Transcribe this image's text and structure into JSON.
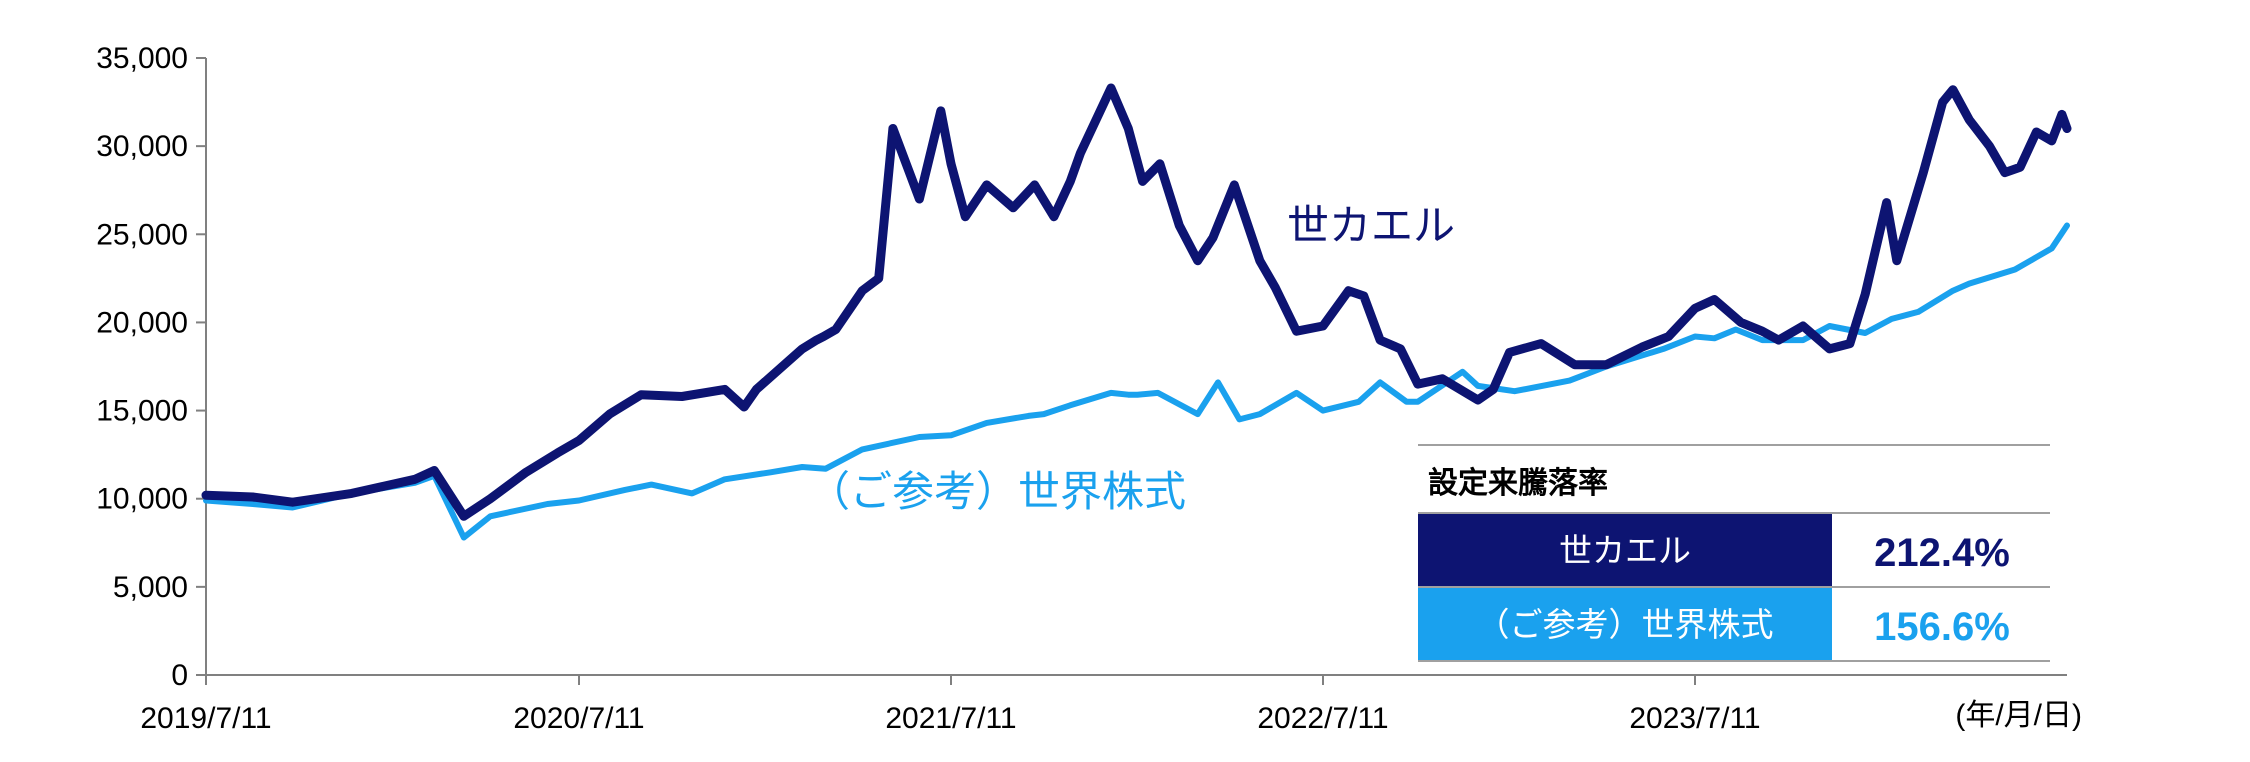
{
  "chart_data": {
    "type": "line",
    "y_ticks": [
      "35,000",
      "30,000",
      "25,000",
      "20,000",
      "15,000",
      "10,000",
      "5,000",
      "0"
    ],
    "ylim": [
      0,
      35000
    ],
    "x_tick_labels": [
      "2019/7/11",
      "2020/7/11",
      "2021/7/11",
      "2022/7/11",
      "2023/7/11"
    ],
    "x_unit_label": "(年/月/日)",
    "x_range": [
      "2019/7/11",
      "2024/7/10"
    ],
    "grid": false,
    "series": [
      {
        "name": "世カエル",
        "color": "#0d1472",
        "x": [
          "2019/7/11",
          "2019/8/26",
          "2019/10/4",
          "2019/12/1",
          "2020/2/1",
          "2020/2/20",
          "2020/3/20",
          "2020/4/15",
          "2020/5/20",
          "2020/6/20",
          "2020/7/11",
          "2020/8/10",
          "2020/9/10",
          "2020/10/20",
          "2020/12/1",
          "2020/12/20",
          "2021/1/1",
          "2021/2/15",
          "2021/3/1",
          "2021/3/8",
          "2021/3/20",
          "2021/4/15",
          "2021/5/1",
          "2021/5/15",
          "2021/6/10",
          "2021/7/1",
          "2021/7/11",
          "2021/7/25",
          "2021/8/15",
          "2021/9/10",
          "2021/10/1",
          "2021/10/20",
          "2021/11/5",
          "2021/11/15",
          "2021/12/15",
          "2022/1/1",
          "2022/1/15",
          "2022/2/1",
          "2022/2/20",
          "2022/3/10",
          "2022/3/25",
          "2022/4/15",
          "2022/5/10",
          "2022/5/25",
          "2022/6/15",
          "2022/7/11",
          "2022/8/5",
          "2022/8/20",
          "2022/9/5",
          "2022/9/25",
          "2022/10/12",
          "2022/11/5",
          "2022/12/10",
          "2022/12/25",
          "2023/1/10",
          "2023/2/10",
          "2023/3/15",
          "2023/4/15",
          "2023/5/20",
          "2023/6/15",
          "2023/7/11",
          "2023/7/30",
          "2023/8/25",
          "2023/9/15",
          "2023/10/1",
          "2023/10/25",
          "2023/11/20",
          "2023/12/10",
          "2023/12/25",
          "2024/1/15",
          "2024/1/25",
          "2024/2/20",
          "2024/3/10",
          "2024/3/20",
          "2024/4/5",
          "2024/4/25",
          "2024/5/10",
          "2024/5/25",
          "2024/6/10",
          "2024/6/25",
          "2024/7/5",
          "2024/7/10"
        ],
        "values": [
          10200,
          10100,
          9800,
          10300,
          11100,
          11600,
          9000,
          10000,
          11500,
          12600,
          13300,
          14800,
          15900,
          15800,
          16200,
          15200,
          16200,
          18500,
          19000,
          19200,
          19600,
          21800,
          22500,
          31000,
          27000,
          32000,
          29000,
          26000,
          27800,
          26500,
          27800,
          26000,
          28000,
          29600,
          33300,
          31000,
          28000,
          29000,
          25500,
          23500,
          24800,
          27800,
          23500,
          22000,
          19500,
          19800,
          21800,
          21500,
          19000,
          18500,
          16500,
          16800,
          15600,
          16200,
          18300,
          18800,
          17600,
          17600,
          18600,
          19200,
          20800,
          21300,
          20000,
          19500,
          19000,
          19800,
          18500,
          18800,
          21600,
          26800,
          23500,
          28500,
          32500,
          33200,
          31500,
          30000,
          28500,
          28800,
          30800,
          30300,
          31800,
          31000
        ]
      },
      {
        "name": "（ご参考）世界株式",
        "color": "#1aa1ee",
        "x": [
          "2019/7/11",
          "2019/8/26",
          "2019/10/4",
          "2019/12/1",
          "2020/2/1",
          "2020/2/20",
          "2020/3/20",
          "2020/4/15",
          "2020/6/10",
          "2020/7/11",
          "2020/8/25",
          "2020/9/20",
          "2020/10/30",
          "2020/12/1",
          "2021/1/15",
          "2021/2/15",
          "2021/3/10",
          "2021/4/15",
          "2021/6/10",
          "2021/7/11",
          "2021/8/15",
          "2021/9/25",
          "2021/10/10",
          "2021/11/5",
          "2021/12/15",
          "2022/1/1",
          "2022/1/10",
          "2022/1/30",
          "2022/3/10",
          "2022/3/30",
          "2022/4/20",
          "2022/5/10",
          "2022/6/15",
          "2022/7/11",
          "2022/8/15",
          "2022/9/5",
          "2022/10/1",
          "2022/10/12",
          "2022/11/25",
          "2022/12/10",
          "2023/1/15",
          "2023/3/10",
          "2023/4/15",
          "2023/6/10",
          "2023/7/11",
          "2023/7/30",
          "2023/8/20",
          "2023/9/15",
          "2023/10/25",
          "2023/11/20",
          "2023/12/25",
          "2024/1/20",
          "2024/2/15",
          "2024/3/20",
          "2024/4/5",
          "2024/5/20",
          "2024/6/10",
          "2024/6/25",
          "2024/7/10"
        ],
        "values": [
          9900,
          9700,
          9500,
          10300,
          10900,
          11300,
          7800,
          9000,
          9700,
          9900,
          10500,
          10800,
          10300,
          11100,
          11500,
          11800,
          11700,
          12800,
          13500,
          13600,
          14300,
          14700,
          14800,
          15300,
          16000,
          15900,
          15900,
          16000,
          14800,
          16600,
          14500,
          14800,
          16000,
          15000,
          15500,
          16600,
          15500,
          15500,
          17200,
          16400,
          16100,
          16700,
          17500,
          18500,
          19200,
          19100,
          19600,
          19000,
          19000,
          19800,
          19400,
          20200,
          20600,
          21800,
          22200,
          23000,
          23700,
          24200,
          25500
        ]
      }
    ],
    "legend": {
      "title": "設定来騰落率",
      "rows": [
        {
          "name": "世カエル",
          "value": "212.4%",
          "color": "#0d1472"
        },
        {
          "name": "（ご参考）世界株式",
          "value": "156.6%",
          "color": "#1aa1ee"
        }
      ]
    }
  }
}
